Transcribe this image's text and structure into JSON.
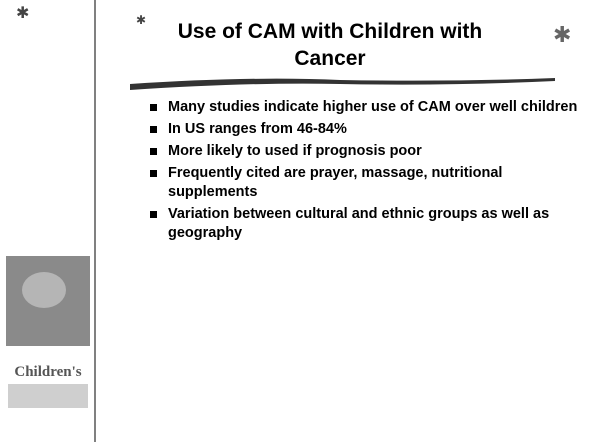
{
  "slide": {
    "title": "Use of CAM with Children with Cancer",
    "bullets": [
      "Many studies indicate higher use of CAM over well children",
      "In US ranges from 46-84%",
      "More likely to used if prognosis poor",
      "Frequently cited are prayer, massage, nutritional supplements",
      "Variation between cultural and ethnic groups as well as geography"
    ],
    "logo": "Children's"
  }
}
